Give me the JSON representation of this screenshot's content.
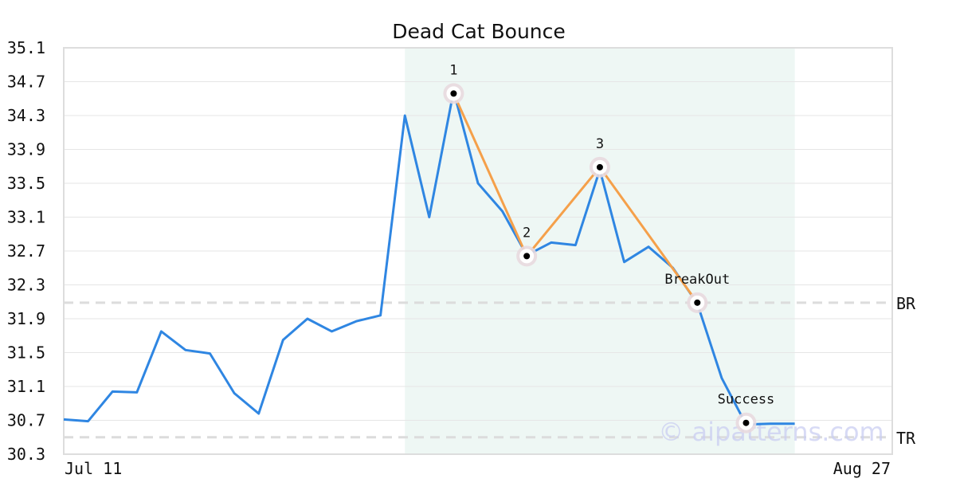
{
  "chart_data": {
    "type": "line",
    "title": "Dead Cat Bounce",
    "watermark": "© aipatterns.com",
    "ylim": [
      30.3,
      35.1
    ],
    "y_ticks": [
      "35.1",
      "34.7",
      "34.3",
      "33.9",
      "33.5",
      "33.1",
      "32.7",
      "32.3",
      "31.9",
      "31.5",
      "31.1",
      "30.7",
      "30.3"
    ],
    "x_labels": {
      "start": "Jul 11",
      "end": "Aug 27"
    },
    "x_count": 35,
    "series": [
      {
        "color": "#2f86e2",
        "values": [
          30.71,
          30.69,
          31.04,
          31.03,
          31.75,
          31.53,
          31.49,
          31.02,
          30.78,
          31.65,
          31.9,
          31.75,
          31.87,
          31.94,
          34.3,
          33.1,
          34.59,
          33.5,
          33.17,
          32.65,
          32.8,
          32.77,
          33.66,
          32.57,
          32.75,
          32.5,
          32.08,
          31.2,
          30.65,
          30.66,
          30.66
        ]
      }
    ],
    "pattern_line": {
      "color": "#f5a04a",
      "points": [
        [
          16,
          34.56
        ],
        [
          19,
          32.64
        ],
        [
          22,
          33.69
        ],
        [
          26,
          32.09
        ]
      ]
    },
    "highlight_region": {
      "from": 14,
      "to": 30,
      "color": "#eef7f4"
    },
    "levels": [
      {
        "label": "BR",
        "value": 32.09
      },
      {
        "label": "TR",
        "value": 30.5
      }
    ],
    "markers": [
      {
        "label": "1",
        "x": 16,
        "y": 34.56
      },
      {
        "label": "2",
        "x": 19,
        "y": 32.64
      },
      {
        "label": "3",
        "x": 22,
        "y": 33.69
      },
      {
        "label": "BreakOut",
        "x": 26,
        "y": 32.09
      },
      {
        "label": "Success",
        "x": 28,
        "y": 30.67
      }
    ],
    "grid": true
  }
}
